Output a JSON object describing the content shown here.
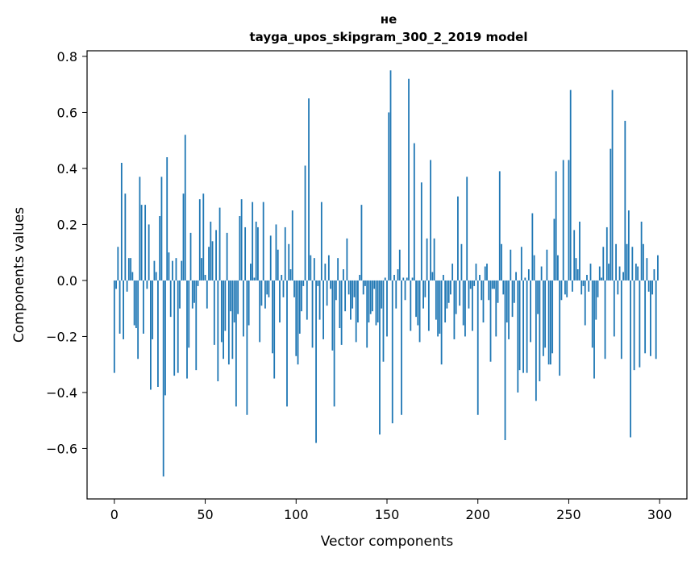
{
  "chart_data": {
    "type": "bar",
    "title_lines": [
      "не",
      "tayga_upos_skipgram_300_2_2019 model"
    ],
    "xlabel": "Vector components",
    "ylabel": "Components values",
    "xlim": [
      -15,
      315
    ],
    "ylim": [
      -0.78,
      0.82
    ],
    "x_ticks": [
      0,
      50,
      100,
      150,
      200,
      250,
      300
    ],
    "y_ticks": [
      -0.6,
      -0.4,
      -0.2,
      0.0,
      0.2,
      0.4,
      0.6,
      0.8
    ],
    "y_tick_labels": [
      "−0.6",
      "−0.4",
      "−0.2",
      "0.0",
      "0.2",
      "0.4",
      "0.6",
      "0.8"
    ],
    "bar_color": "#1f77b4",
    "grid": false,
    "values": [
      -0.33,
      -0.03,
      0.12,
      -0.19,
      0.42,
      -0.21,
      0.31,
      -0.04,
      0.08,
      0.08,
      0.03,
      -0.16,
      -0.17,
      -0.28,
      0.37,
      0.27,
      -0.19,
      0.27,
      -0.03,
      0.2,
      -0.39,
      -0.21,
      0.07,
      0.03,
      -0.38,
      0.23,
      0.37,
      -0.7,
      -0.41,
      0.44,
      0.1,
      -0.13,
      0.07,
      -0.34,
      0.08,
      -0.33,
      -0.1,
      0.07,
      0.31,
      0.52,
      -0.35,
      -0.24,
      0.17,
      -0.1,
      -0.08,
      -0.32,
      -0.02,
      0.29,
      0.08,
      0.31,
      0.02,
      -0.1,
      0.12,
      0.21,
      0.14,
      -0.23,
      0.18,
      -0.36,
      0.26,
      -0.22,
      -0.28,
      -0.18,
      0.17,
      -0.3,
      -0.11,
      -0.28,
      -0.15,
      -0.45,
      -0.12,
      0.23,
      0.29,
      -0.2,
      0.19,
      -0.48,
      -0.16,
      0.06,
      0.28,
      0.01,
      0.21,
      0.19,
      -0.22,
      -0.09,
      0.28,
      -0.1,
      -0.05,
      -0.06,
      0.16,
      -0.26,
      -0.35,
      0.2,
      0.11,
      -0.15,
      0.02,
      -0.06,
      0.19,
      -0.45,
      0.13,
      0.04,
      0.25,
      -0.06,
      -0.27,
      -0.3,
      -0.19,
      -0.11,
      -0.02,
      0.41,
      -0.14,
      0.65,
      0.09,
      -0.24,
      0.08,
      -0.58,
      -0.02,
      -0.14,
      0.28,
      -0.21,
      0.06,
      -0.09,
      0.09,
      -0.03,
      -0.25,
      -0.45,
      -0.07,
      0.08,
      -0.17,
      -0.23,
      0.04,
      -0.11,
      0.15,
      -0.05,
      -0.14,
      -0.1,
      -0.06,
      -0.22,
      -0.15,
      0.02,
      0.27,
      -0.05,
      -0.02,
      -0.24,
      -0.15,
      -0.12,
      -0.11,
      -0.03,
      -0.16,
      -0.15,
      -0.55,
      -0.1,
      -0.29,
      0.01,
      -0.2,
      0.6,
      0.75,
      -0.51,
      0.02,
      -0.1,
      0.04,
      0.11,
      -0.48,
      0.01,
      -0.07,
      0.01,
      0.72,
      -0.18,
      0.01,
      0.49,
      -0.13,
      -0.16,
      -0.22,
      0.35,
      -0.1,
      -0.06,
      0.15,
      -0.18,
      0.43,
      0.03,
      0.15,
      -0.14,
      -0.2,
      -0.19,
      -0.3,
      0.02,
      -0.15,
      -0.1,
      -0.08,
      -0.05,
      0.06,
      -0.21,
      -0.12,
      0.3,
      -0.09,
      0.13,
      -0.16,
      -0.2,
      0.37,
      -0.1,
      -0.03,
      -0.18,
      -0.02,
      0.06,
      -0.48,
      0.02,
      -0.07,
      -0.15,
      0.05,
      0.06,
      -0.07,
      -0.29,
      -0.03,
      -0.03,
      -0.2,
      -0.08,
      0.39,
      0.13,
      -0.05,
      -0.57,
      -0.15,
      -0.21,
      0.11,
      -0.13,
      -0.08,
      0.03,
      -0.4,
      -0.32,
      0.12,
      -0.33,
      0.01,
      -0.33,
      0.04,
      -0.22,
      0.24,
      0.09,
      -0.43,
      -0.12,
      -0.36,
      0.05,
      -0.27,
      -0.24,
      0.11,
      -0.3,
      -0.3,
      -0.26,
      0.22,
      0.39,
      0.09,
      -0.34,
      -0.07,
      0.43,
      -0.05,
      -0.06,
      0.43,
      0.68,
      -0.04,
      0.18,
      0.08,
      0.04,
      0.21,
      -0.05,
      -0.02,
      -0.16,
      0.02,
      -0.04,
      0.06,
      -0.24,
      -0.35,
      -0.14,
      -0.06,
      0.05,
      0.01,
      0.12,
      -0.28,
      0.19,
      0.06,
      0.47,
      0.68,
      -0.2,
      0.13,
      -0.05,
      0.05,
      -0.28,
      0.03,
      0.57,
      0.13,
      0.25,
      -0.56,
      0.12,
      -0.32,
      0.06,
      0.05,
      -0.31,
      0.21,
      0.13,
      -0.26,
      0.08,
      -0.04,
      -0.27,
      -0.05,
      0.04,
      -0.28,
      0.09
    ]
  }
}
